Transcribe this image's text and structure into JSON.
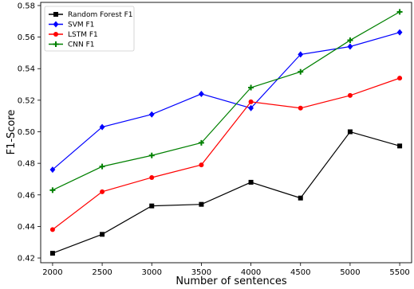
{
  "chart_data": {
    "type": "line",
    "title": "",
    "xlabel": "Number of sentences",
    "ylabel": "F1-Score",
    "x": [
      2000,
      2500,
      3000,
      3500,
      4000,
      4500,
      5000,
      5500
    ],
    "x_tick_labels": [
      "2000",
      "2500",
      "3000",
      "3500",
      "4000",
      "4500",
      "5000",
      "5500"
    ],
    "y_tick_labels": [
      "0.42",
      "0.44",
      "0.46",
      "0.48",
      "0.50",
      "0.52",
      "0.54",
      "0.56",
      "0.58"
    ],
    "ylim": [
      0.417,
      0.582
    ],
    "xlim": [
      1880,
      5620
    ],
    "grid": false,
    "legend_position": "top-left",
    "series": [
      {
        "name": "Random Forest F1",
        "color": "#000000",
        "marker": "square",
        "values": [
          0.423,
          0.435,
          0.453,
          0.454,
          0.468,
          0.458,
          0.5,
          0.491
        ]
      },
      {
        "name": "SVM F1",
        "color": "#0000ff",
        "marker": "diamond",
        "values": [
          0.476,
          0.503,
          0.511,
          0.524,
          0.515,
          0.549,
          0.554,
          0.563
        ]
      },
      {
        "name": "LSTM F1",
        "color": "#ff0000",
        "marker": "circle",
        "values": [
          0.438,
          0.462,
          0.471,
          0.479,
          0.519,
          0.515,
          0.523,
          0.534
        ]
      },
      {
        "name": "CNN F1",
        "color": "#008000",
        "marker": "plus",
        "values": [
          0.463,
          0.478,
          0.485,
          0.493,
          0.528,
          0.538,
          0.558,
          0.576
        ]
      }
    ]
  }
}
